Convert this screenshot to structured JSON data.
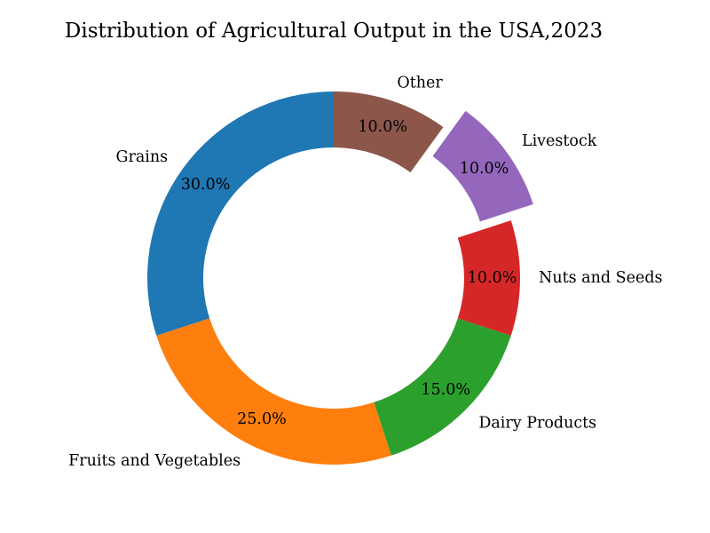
{
  "chart_data": {
    "type": "pie",
    "title": "Distribution of Agricultural Output in the USA,2023",
    "categories": [
      "Grains",
      "Fruits and Vegetables",
      "Dairy Products",
      "Nuts and Seeds",
      "Livestock",
      "Other"
    ],
    "values": [
      30,
      25,
      15,
      10,
      10,
      10
    ],
    "value_labels": [
      "30.0%",
      "25.0%",
      "15.0%",
      "10.0%",
      "10.0%",
      "10.0%"
    ],
    "colors": [
      "#1f77b4",
      "#ff7f0e",
      "#2ca02c",
      "#d62728",
      "#9467bd",
      "#8c564b"
    ],
    "exploded": [
      false,
      false,
      false,
      false,
      true,
      false
    ],
    "donut": true,
    "start_angle_deg": 90,
    "direction": "counterclockwise"
  }
}
